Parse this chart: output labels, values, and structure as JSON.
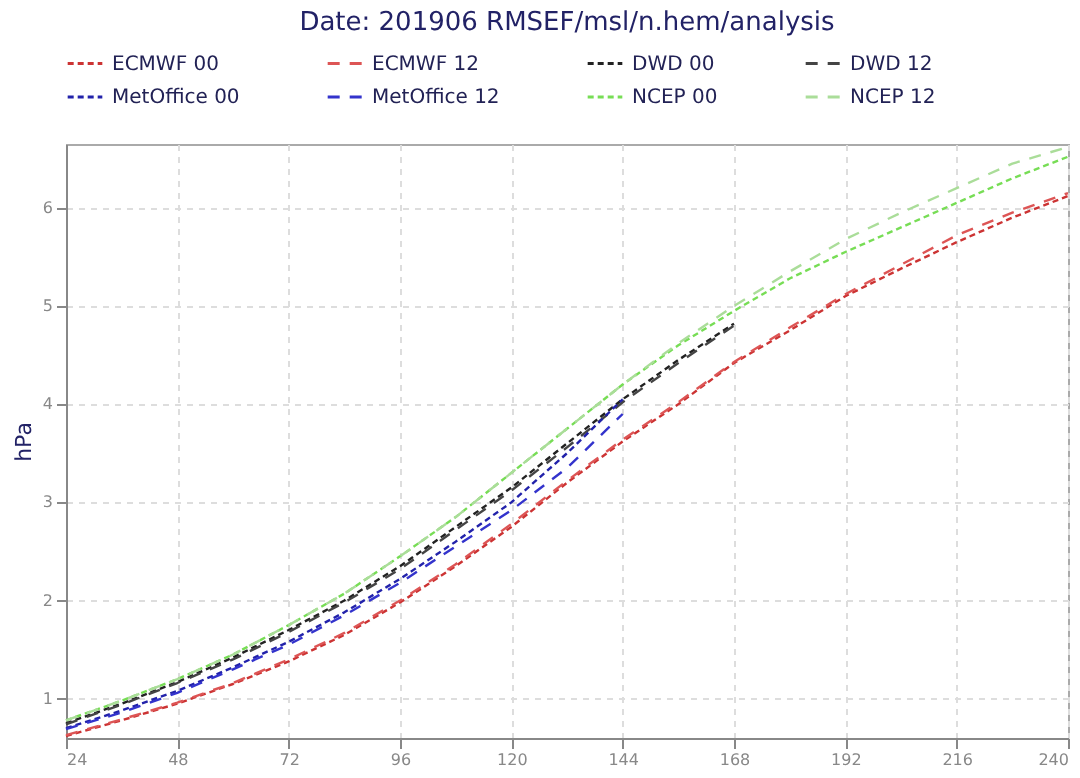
{
  "chart_data": {
    "type": "line",
    "title": "Date: 201906 RMSEF/msl/n.hem/analysis",
    "ylabel": "hPa",
    "x": [
      24,
      36,
      48,
      60,
      72,
      84,
      96,
      108,
      120,
      132,
      144,
      156,
      168,
      180,
      192,
      204,
      216,
      228,
      240
    ],
    "xlim": [
      24,
      240
    ],
    "xticks": [
      24,
      48,
      72,
      96,
      120,
      144,
      168,
      192,
      216,
      240
    ],
    "ylim": [
      0.6,
      6.65
    ],
    "yticks": [
      1,
      2,
      3,
      4,
      5,
      6
    ],
    "grid": true,
    "legend": "top",
    "marker": "none",
    "series": [
      {
        "name": "ECMWF 00",
        "color": "#cc3333",
        "line_style": "dotted",
        "values": [
          0.62,
          0.78,
          0.95,
          1.15,
          1.38,
          1.65,
          1.98,
          2.35,
          2.75,
          3.2,
          3.62,
          4.0,
          4.42,
          4.75,
          5.1,
          5.38,
          5.65,
          5.9,
          6.12
        ]
      },
      {
        "name": "ECMWF 12",
        "color": "#dd5555",
        "line_style": "dashed",
        "values": [
          0.63,
          0.79,
          0.96,
          1.16,
          1.4,
          1.67,
          2.0,
          2.37,
          2.78,
          3.22,
          3.64,
          4.02,
          4.43,
          4.78,
          5.12,
          5.42,
          5.72,
          5.95,
          6.15
        ]
      },
      {
        "name": "DWD 00",
        "color": "#222222",
        "line_style": "dotted",
        "values": [
          0.75,
          0.95,
          1.17,
          1.42,
          1.7,
          2.0,
          2.35,
          2.75,
          3.15,
          3.6,
          4.05,
          4.45,
          4.82,
          null,
          null,
          null,
          null,
          null,
          null
        ]
      },
      {
        "name": "DWD 12",
        "color": "#444444",
        "line_style": "dashed",
        "values": [
          0.74,
          0.94,
          1.16,
          1.4,
          1.68,
          1.98,
          2.32,
          2.72,
          3.12,
          3.56,
          4.02,
          4.42,
          4.8,
          null,
          null,
          null,
          null,
          null,
          null
        ]
      },
      {
        "name": "MetOffice 00",
        "color": "#2222aa",
        "line_style": "dotted",
        "values": [
          0.7,
          0.88,
          1.08,
          1.32,
          1.58,
          1.88,
          2.22,
          2.6,
          3.0,
          3.5,
          4.05,
          null,
          null,
          null,
          null,
          null,
          null,
          null,
          null
        ]
      },
      {
        "name": "MetOffice 12",
        "color": "#3333cc",
        "line_style": "dashed",
        "values": [
          0.69,
          0.86,
          1.06,
          1.3,
          1.55,
          1.85,
          2.18,
          2.55,
          2.92,
          3.35,
          3.9,
          null,
          null,
          null,
          null,
          null,
          null,
          null,
          null
        ]
      },
      {
        "name": "NCEP 00",
        "color": "#77dd55",
        "line_style": "dotted",
        "values": [
          0.78,
          0.98,
          1.2,
          1.45,
          1.75,
          2.07,
          2.45,
          2.85,
          3.3,
          3.75,
          4.2,
          4.6,
          4.95,
          5.28,
          5.55,
          5.8,
          6.05,
          6.3,
          6.52
        ]
      },
      {
        "name": "NCEP 12",
        "color": "#aadd99",
        "line_style": "dashed",
        "values": [
          0.78,
          0.98,
          1.2,
          1.45,
          1.75,
          2.07,
          2.45,
          2.85,
          3.3,
          3.75,
          4.2,
          4.62,
          5.0,
          5.35,
          5.68,
          5.95,
          6.2,
          6.45,
          6.62
        ]
      }
    ]
  }
}
